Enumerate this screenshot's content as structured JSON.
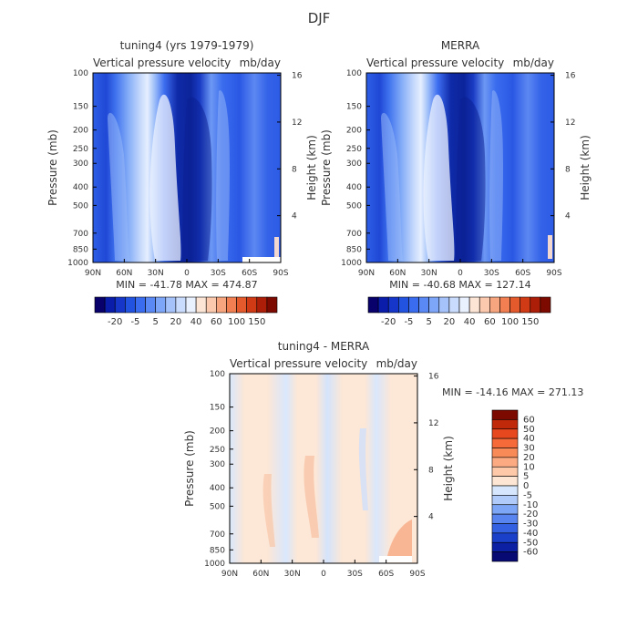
{
  "figure": {
    "title": "DJF"
  },
  "ylabel_left": "Pressure (mb)",
  "ylabel_right": "Height (km)",
  "chart_data": [
    {
      "type": "heatmap",
      "title": "tuning4 (yrs 1979-1979)",
      "subtitle": "Vertical pressure velocity",
      "units": "mb/day",
      "stats": "MIN = -41.78   MAX = 474.87",
      "xticks": [
        "90N",
        "60N",
        "30N",
        "0",
        "30S",
        "60S",
        "90S"
      ],
      "yticks": [
        "100",
        "150",
        "200",
        "250",
        "300",
        "400",
        "500",
        "700",
        "850",
        "1000"
      ],
      "rticks": [
        "16",
        "12",
        "8",
        "4"
      ],
      "colorbar_labels": [
        "-20",
        "-5",
        "5",
        "20",
        "40",
        "60",
        "100",
        "150"
      ],
      "colors": [
        "#08006b",
        "#0a1caa",
        "#1536c8",
        "#2252e0",
        "#3a6cf0",
        "#5a88f5",
        "#7ea6f8",
        "#a5c2fb",
        "#cadcfd",
        "#e9f1fe",
        "#fde5d6",
        "#fbc9ad",
        "#f7a57e",
        "#f17f52",
        "#e55a2c",
        "#d03a14",
        "#ad1e08",
        "#7d0a00"
      ],
      "xlim": [
        -90,
        90
      ],
      "ylim": [
        1000,
        100
      ]
    },
    {
      "type": "heatmap",
      "title": "MERRA",
      "subtitle": "Vertical pressure velocity",
      "units": "mb/day",
      "stats": "MIN = -40.68   MAX = 127.14",
      "xticks": [
        "90N",
        "60N",
        "30N",
        "0",
        "30S",
        "60S",
        "90S"
      ],
      "yticks": [
        "100",
        "150",
        "200",
        "250",
        "300",
        "400",
        "500",
        "700",
        "850",
        "1000"
      ],
      "rticks": [
        "16",
        "12",
        "8",
        "4"
      ],
      "colorbar_labels": [
        "-20",
        "-5",
        "5",
        "20",
        "40",
        "60",
        "100",
        "150"
      ],
      "colors": [
        "#08006b",
        "#0a1caa",
        "#1536c8",
        "#2252e0",
        "#3a6cf0",
        "#5a88f5",
        "#7ea6f8",
        "#a5c2fb",
        "#cadcfd",
        "#e9f1fe",
        "#fde5d6",
        "#fbc9ad",
        "#f7a57e",
        "#f17f52",
        "#e55a2c",
        "#d03a14",
        "#ad1e08",
        "#7d0a00"
      ],
      "xlim": [
        -90,
        90
      ],
      "ylim": [
        1000,
        100
      ]
    },
    {
      "type": "heatmap",
      "title": "tuning4 - MERRA",
      "subtitle": "Vertical pressure velocity",
      "units": "mb/day",
      "stats": "MIN = -14.16   MAX = 271.13",
      "xticks": [
        "90N",
        "60N",
        "30N",
        "0",
        "30S",
        "60S",
        "90S"
      ],
      "yticks": [
        "100",
        "150",
        "200",
        "250",
        "300",
        "400",
        "500",
        "700",
        "850",
        "1000"
      ],
      "rticks": [
        "16",
        "12",
        "8",
        "4"
      ],
      "colorbar_labels": [
        "60",
        "50",
        "40",
        "30",
        "20",
        "10",
        "5",
        "0",
        "-5",
        "-10",
        "-20",
        "-30",
        "-40",
        "-50",
        "-60"
      ],
      "colors": [
        "#7d0a00",
        "#c02a0a",
        "#e8481e",
        "#f56a38",
        "#f88a58",
        "#fbaa82",
        "#fdc9a8",
        "#fde6d4",
        "#d6e6fc",
        "#b0cafa",
        "#7ea6f6",
        "#5884ef",
        "#3361e2",
        "#1a3fc8",
        "#0b20a2",
        "#060a72"
      ],
      "xlim": [
        -90,
        90
      ],
      "ylim": [
        1000,
        100
      ]
    }
  ]
}
